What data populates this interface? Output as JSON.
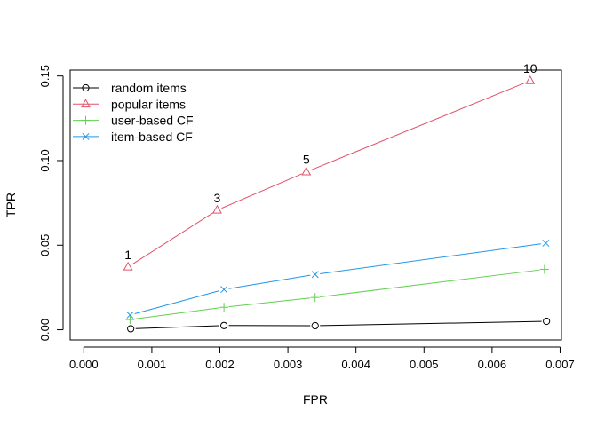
{
  "chart_data": {
    "type": "line",
    "title": "",
    "xlabel": "FPR",
    "ylabel": "TPR",
    "xlim": [
      -0.0002,
      0.00702
    ],
    "ylim": [
      -0.006,
      0.1535
    ],
    "x_ticks": [
      0.0,
      0.001,
      0.002,
      0.003,
      0.004,
      0.005,
      0.006,
      0.007
    ],
    "x_tick_labels": [
      "0.000",
      "0.001",
      "0.002",
      "0.003",
      "0.004",
      "0.005",
      "0.006",
      "0.007"
    ],
    "y_ticks": [
      0.0,
      0.05,
      0.1,
      0.15
    ],
    "y_tick_labels": [
      "0.00",
      "0.05",
      "0.10",
      "0.15"
    ],
    "grid": false,
    "legend_position": "top-left",
    "series": [
      {
        "name": "random items",
        "color": "#000000",
        "marker": "circle",
        "points": [
          [
            0.00069,
            0.0006
          ],
          [
            0.00206,
            0.0025
          ],
          [
            0.0034,
            0.0024
          ],
          [
            0.0068,
            0.005
          ]
        ]
      },
      {
        "name": "popular items",
        "color": "#DF536B",
        "marker": "triangle",
        "points": [
          [
            0.00065,
            0.0371
          ],
          [
            0.00196,
            0.0707
          ],
          [
            0.00327,
            0.0933
          ],
          [
            0.00656,
            0.1472
          ]
        ]
      },
      {
        "name": "user-based CF",
        "color": "#61D04F",
        "marker": "plus",
        "points": [
          [
            0.00068,
            0.006
          ],
          [
            0.00206,
            0.0133
          ],
          [
            0.0034,
            0.0191
          ],
          [
            0.00677,
            0.0357
          ]
        ]
      },
      {
        "name": "item-based CF",
        "color": "#2297E6",
        "marker": "cross",
        "points": [
          [
            0.00068,
            0.0087
          ],
          [
            0.00206,
            0.0238
          ],
          [
            0.0034,
            0.0327
          ],
          [
            0.00679,
            0.0512
          ]
        ]
      }
    ],
    "point_labels": [
      {
        "text": "1",
        "x": 0.00065,
        "y": 0.0371
      },
      {
        "text": "3",
        "x": 0.00196,
        "y": 0.0707
      },
      {
        "text": "5",
        "x": 0.00327,
        "y": 0.0933
      },
      {
        "text": "10",
        "x": 0.00656,
        "y": 0.1472
      }
    ]
  }
}
